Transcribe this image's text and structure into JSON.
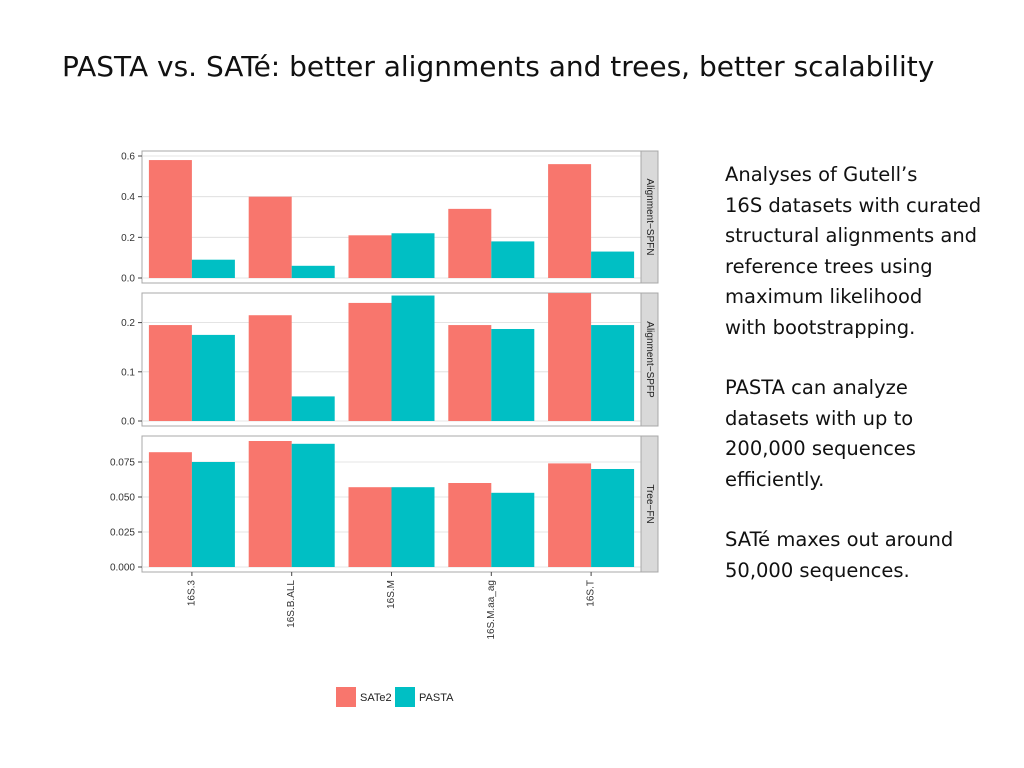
{
  "title": "PASTA vs. SATé: better alignments and trees, better scalability",
  "side_text": {
    "paragraphs": [
      [
        "Analyses of Gutell’s",
        "16S datasets with curated",
        "structural alignments and",
        "reference trees using",
        "maximum likelihood",
        "with bootstrapping."
      ],
      [
        "PASTA can analyze",
        "datasets with up to",
        "200,000 sequences",
        "efficiently."
      ],
      [
        "SATé maxes out around",
        "50,000 sequences."
      ]
    ]
  },
  "chart_data": {
    "type": "bar",
    "categories": [
      "16S.3",
      "16S.B.ALL",
      "16S.M",
      "16S.M.aa_ag",
      "16S.T"
    ],
    "legend": [
      "SATe2",
      "PASTA"
    ],
    "colors": {
      "SATe2": "#f8766d",
      "PASTA": "#00bfc4"
    },
    "panel_background": "#ffffff",
    "strip_background": "#d9d9d9",
    "grid": true,
    "legend_position": "bottom",
    "facets": [
      {
        "strip_label": "Alignment−SPFN",
        "ylim": [
          0,
          0.6
        ],
        "yticks": [
          "0.0",
          "0.2",
          "0.4",
          "0.6"
        ],
        "series": [
          {
            "name": "SATe2",
            "values": [
              0.58,
              0.4,
              0.21,
              0.34,
              0.56
            ]
          },
          {
            "name": "PASTA",
            "values": [
              0.09,
              0.06,
              0.22,
              0.18,
              0.13
            ]
          }
        ]
      },
      {
        "strip_label": "Alignment−SPFP",
        "ylim": [
          0,
          0.25
        ],
        "yticks": [
          "0.0",
          "0.1",
          "0.2"
        ],
        "series": [
          {
            "name": "SATe2",
            "values": [
              0.195,
              0.215,
              0.24,
              0.195,
              0.26
            ]
          },
          {
            "name": "PASTA",
            "values": [
              0.175,
              0.05,
              0.255,
              0.187,
              0.195
            ]
          }
        ]
      },
      {
        "strip_label": "Tree−FN",
        "ylim": [
          0,
          0.09
        ],
        "yticks": [
          "0.000",
          "0.025",
          "0.050",
          "0.075"
        ],
        "series": [
          {
            "name": "SATe2",
            "values": [
              0.082,
              0.09,
              0.057,
              0.06,
              0.074
            ]
          },
          {
            "name": "PASTA",
            "values": [
              0.075,
              0.088,
              0.057,
              0.053,
              0.07
            ]
          }
        ]
      }
    ]
  }
}
